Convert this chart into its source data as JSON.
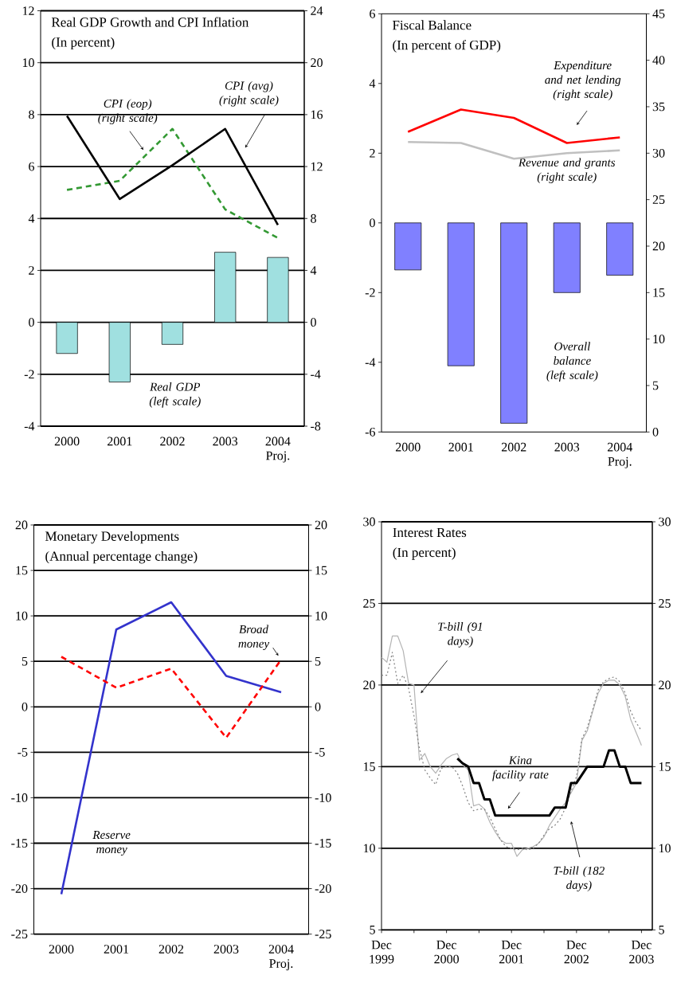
{
  "chart_data": [
    {
      "type": "bar",
      "title": "Real GDP Growth  and CPI Inflation",
      "subtitle": "(In percent)",
      "categories": [
        "2000",
        "2001",
        "2002",
        "2003",
        "2004 Proj."
      ],
      "ylim": [
        -4,
        12
      ],
      "yticks": [
        -4,
        -2,
        0,
        2,
        4,
        6,
        8,
        10,
        12
      ],
      "y2lim": [
        -8,
        24
      ],
      "y2ticks": [
        -8,
        -4,
        0,
        4,
        8,
        12,
        16,
        20,
        24
      ],
      "grid": "y",
      "series": [
        {
          "name": "Real GDP (left scale)",
          "type": "bar",
          "color": "#a0e0e0",
          "values": [
            -1.2,
            -2.3,
            -0.85,
            2.7,
            2.5
          ]
        },
        {
          "name": "CPI (eop) (right scale)",
          "type": "line",
          "axis": "y2",
          "color": "#339933",
          "line_style": "dashed",
          "values": [
            10.2,
            10.9,
            14.9,
            8.7,
            6.5
          ]
        },
        {
          "name": "CPI (avg) (right scale)",
          "type": "line",
          "axis": "y2",
          "color": "#000000",
          "line_style": "solid",
          "values": [
            15.9,
            9.5,
            12.1,
            14.9,
            7.5
          ]
        }
      ]
    },
    {
      "type": "bar",
      "title": "Fiscal Balance",
      "subtitle": "(In percent of GDP)",
      "categories": [
        "2000",
        "2001",
        "2002",
        "2003",
        "2004 Proj."
      ],
      "ylim": [
        -6,
        6
      ],
      "yticks": [
        -6,
        -4,
        -2,
        0,
        2,
        4,
        6
      ],
      "y2lim": [
        0,
        45
      ],
      "y2ticks": [
        0,
        5,
        10,
        15,
        20,
        25,
        30,
        35,
        40,
        45
      ],
      "series": [
        {
          "name": "Overall balance (left scale)",
          "type": "bar",
          "color": "#8080ff",
          "values": [
            -1.35,
            -4.1,
            -5.75,
            -2.0,
            -1.5
          ]
        },
        {
          "name": "Expenditure and net lending (right scale)",
          "type": "line",
          "axis": "y2",
          "color": "#ff0000",
          "line_style": "solid",
          "values": [
            32.3,
            34.7,
            33.8,
            31.1,
            31.7
          ]
        },
        {
          "name": "Revenue and grants (right scale)",
          "type": "line",
          "axis": "y2",
          "color": "#c0c0c0",
          "line_style": "solid",
          "values": [
            31.2,
            31.1,
            29.4,
            30.0,
            30.3
          ]
        }
      ]
    },
    {
      "type": "line",
      "title": "Monetary Developments",
      "subtitle": "(Annual percentage change)",
      "categories": [
        "2000",
        "2001",
        "2002",
        "2003",
        "2004 Proj."
      ],
      "ylim": [
        -25,
        20
      ],
      "yticks": [
        -25,
        -20,
        -15,
        -10,
        -5,
        0,
        5,
        10,
        15,
        20
      ],
      "y2lim": [
        -25,
        20
      ],
      "y2ticks": [
        -25,
        -20,
        -15,
        -10,
        -5,
        0,
        5,
        10,
        15,
        20
      ],
      "grid": "y",
      "series": [
        {
          "name": "Reserve money",
          "color": "#3333cc",
          "line_style": "solid",
          "values": [
            -20.6,
            8.5,
            11.5,
            3.4,
            1.6
          ]
        },
        {
          "name": "Broad money",
          "color": "#ff0000",
          "line_style": "dashed",
          "values": [
            5.5,
            2.1,
            4.2,
            -3.4,
            5.2
          ]
        }
      ]
    },
    {
      "type": "line",
      "title": "Interest Rates",
      "subtitle": "(In percent)",
      "xlim": [
        "1999-12",
        "2004-02"
      ],
      "xticks": [
        {
          "value": "1999-12",
          "label": "Dec 1999"
        },
        {
          "value": "2000-06",
          "label": null
        },
        {
          "value": "2000-12",
          "label": "Dec 2000"
        },
        {
          "value": "2001-06",
          "label": null
        },
        {
          "value": "2001-12",
          "label": "Dec 2001"
        },
        {
          "value": "2002-06",
          "label": null
        },
        {
          "value": "2002-12",
          "label": "Dec 2002"
        },
        {
          "value": "2003-06",
          "label": null
        },
        {
          "value": "2003-12",
          "label": "Dec 2003"
        }
      ],
      "ylim": [
        5,
        30
      ],
      "yticks": [
        5,
        10,
        15,
        20,
        25,
        30
      ],
      "y2lim": [
        5,
        30
      ],
      "y2ticks": [
        5,
        10,
        15,
        20,
        25,
        30
      ],
      "grid": "y",
      "series": [
        {
          "name": "T-bill (91 days)",
          "color": "#b4b4b4",
          "line_style": "solid",
          "x": [
            "1999-12",
            "2000-01",
            "2000-02",
            "2000-03",
            "2000-04",
            "2000-05",
            "2000-06",
            "2000-07",
            "2000-08",
            "2000-09",
            "2000-10",
            "2000-11",
            "2000-12",
            "2001-01",
            "2001-02",
            "2001-03",
            "2001-04",
            "2001-05",
            "2001-06",
            "2001-07",
            "2001-08",
            "2001-09",
            "2001-10",
            "2001-11",
            "2001-12",
            "2002-01",
            "2002-02",
            "2002-03",
            "2002-04",
            "2002-05",
            "2002-06",
            "2002-07",
            "2002-08",
            "2002-09",
            "2002-10",
            "2002-11",
            "2002-12",
            "2003-01",
            "2003-02",
            "2003-03",
            "2003-04",
            "2003-05",
            "2003-06",
            "2003-07",
            "2003-08",
            "2003-09",
            "2003-10",
            "2003-11",
            "2003-12"
          ],
          "values": [
            21.7,
            21.4,
            23.0,
            23.0,
            22.1,
            20.1,
            20.0,
            15.4,
            15.8,
            15.0,
            14.6,
            15.1,
            15.5,
            15.7,
            15.8,
            15.1,
            14.8,
            12.6,
            12.7,
            12.4,
            11.6,
            11.0,
            10.5,
            10.3,
            10.3,
            9.5,
            9.9,
            10.0,
            10.1,
            10.3,
            10.7,
            11.4,
            11.9,
            12.4,
            12.8,
            13.4,
            14.0,
            16.6,
            17.2,
            18.4,
            19.5,
            20.1,
            20.3,
            20.3,
            20.0,
            19.3,
            17.9,
            17.1,
            16.3
          ]
        },
        {
          "name": "T-bill (182 days)",
          "color": "#808080",
          "line_style": "dotted",
          "x": [
            "1999-12",
            "2000-01",
            "2000-02",
            "2000-03",
            "2000-04",
            "2000-05",
            "2000-06",
            "2000-07",
            "2000-08",
            "2000-09",
            "2000-10",
            "2000-11",
            "2000-12",
            "2001-01",
            "2001-02",
            "2001-03",
            "2001-04",
            "2001-05",
            "2001-06",
            "2001-07",
            "2001-08",
            "2001-09",
            "2001-10",
            "2001-11",
            "2001-12",
            "2002-01",
            "2002-02",
            "2002-03",
            "2002-04",
            "2002-05",
            "2002-06",
            "2002-07",
            "2002-08",
            "2002-09",
            "2002-10",
            "2002-11",
            "2002-12",
            "2003-01",
            "2003-02",
            "2003-03",
            "2003-04",
            "2003-05",
            "2003-06",
            "2003-07",
            "2003-08",
            "2003-09",
            "2003-10",
            "2003-11",
            "2003-12"
          ],
          "values": [
            20.6,
            20.6,
            22.0,
            20.1,
            20.6,
            19.8,
            18.1,
            16.1,
            14.8,
            14.3,
            13.9,
            14.9,
            15.0,
            15.0,
            14.6,
            13.8,
            12.8,
            12.3,
            12.4,
            12.4,
            11.9,
            11.2,
            10.5,
            10.1,
            10.0,
            9.9,
            10.0,
            9.9,
            10.0,
            10.3,
            10.8,
            11.2,
            11.4,
            11.8,
            12.5,
            13.5,
            14.4,
            16.7,
            17.4,
            18.5,
            19.7,
            20.2,
            20.4,
            20.5,
            20.2,
            19.5,
            18.4,
            17.7,
            17.2
          ]
        },
        {
          "name": "Kina facility rate",
          "color": "#000000",
          "line_style": "solid",
          "x": [
            "2001-02",
            "2001-03",
            "2001-04",
            "2001-05",
            "2001-06",
            "2001-07",
            "2001-08",
            "2001-09",
            "2002-07",
            "2002-08",
            "2002-09",
            "2002-10",
            "2002-11",
            "2002-12",
            "2003-01",
            "2003-02",
            "2003-03",
            "2003-04",
            "2003-05",
            "2003-06",
            "2003-07",
            "2003-08",
            "2003-09",
            "2003-10",
            "2003-11",
            "2003-12"
          ],
          "values": [
            15.5,
            15.2,
            15.0,
            14.0,
            14.0,
            13.0,
            13.0,
            12.0,
            12.0,
            12.5,
            12.5,
            12.5,
            14.0,
            14.0,
            14.5,
            15.0,
            15.0,
            15.0,
            15.0,
            16.0,
            16.0,
            15.0,
            15.0,
            14.0,
            14.0,
            14.0
          ]
        }
      ]
    }
  ]
}
